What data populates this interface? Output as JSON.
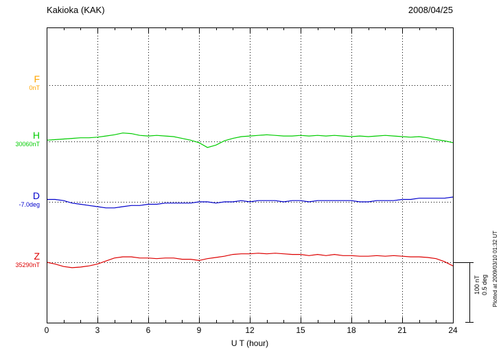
{
  "chart_data": {
    "type": "line",
    "station": "Kakioka (KAK)",
    "date": "2008/04/25",
    "xlabel": "U T (hour)",
    "x_range": [
      0,
      24
    ],
    "x_tick_labels": [
      "0",
      "3",
      "6",
      "9",
      "12",
      "15",
      "18",
      "21",
      "24"
    ],
    "x_step_hours": 0.5,
    "grid": "dotted vertical gridlines every 3 hours; dotted horizontal baseline per trace",
    "scale_bar": {
      "nt_label": "100 nT",
      "deg_label": "0.5 deg",
      "nT_per_bar": 100,
      "deg_per_bar": 0.5
    },
    "series": [
      {
        "name": "F",
        "label": "F",
        "baseline_label": "0nT",
        "baseline_value": 0,
        "unit": "nT",
        "color": "#FFA500",
        "values": []
      },
      {
        "name": "H",
        "label": "H",
        "baseline_label": "30060nT",
        "baseline_value": 30060,
        "unit": "nT",
        "color": "#00CC00",
        "values": [
          30062,
          30063,
          30064,
          30065,
          30066,
          30066,
          30067,
          30069,
          30071,
          30074,
          30073,
          30070,
          30069,
          30070,
          30069,
          30068,
          30065,
          30062,
          30058,
          30050,
          30054,
          30061,
          30065,
          30068,
          30069,
          30070,
          30071,
          30070,
          30069,
          30069,
          30070,
          30069,
          30070,
          30069,
          30070,
          30069,
          30068,
          30069,
          30068,
          30069,
          30070,
          30069,
          30068,
          30067,
          30068,
          30066,
          30063,
          30061,
          30058
        ]
      },
      {
        "name": "D",
        "label": "D",
        "baseline_label": "-7.0deg",
        "baseline_value": -7.0,
        "unit": "deg",
        "color": "#0000CC",
        "values": [
          -6.98,
          -6.98,
          -6.99,
          -7.01,
          -7.02,
          -7.03,
          -7.04,
          -7.05,
          -7.05,
          -7.04,
          -7.03,
          -7.03,
          -7.02,
          -7.02,
          -7.01,
          -7.01,
          -7.01,
          -7.01,
          -7.0,
          -7.0,
          -7.01,
          -7.0,
          -7.0,
          -6.99,
          -7.0,
          -6.99,
          -6.99,
          -6.99,
          -7.0,
          -6.99,
          -6.99,
          -7.0,
          -6.99,
          -6.99,
          -6.99,
          -6.99,
          -6.99,
          -7.0,
          -7.0,
          -6.99,
          -6.99,
          -6.99,
          -6.98,
          -6.98,
          -6.97,
          -6.97,
          -6.97,
          -6.97,
          -6.96
        ]
      },
      {
        "name": "Z",
        "label": "Z",
        "baseline_label": "35290nT",
        "baseline_value": 35290,
        "unit": "nT",
        "color": "#DD0000",
        "values": [
          35290,
          35287,
          35283,
          35281,
          35282,
          35284,
          35287,
          35292,
          35297,
          35299,
          35299,
          35297,
          35297,
          35296,
          35297,
          35297,
          35295,
          35295,
          35293,
          35296,
          35298,
          35300,
          35303,
          35304,
          35304,
          35305,
          35304,
          35305,
          35304,
          35303,
          35303,
          35301,
          35303,
          35301,
          35303,
          35301,
          35301,
          35300,
          35300,
          35301,
          35300,
          35301,
          35300,
          35299,
          35299,
          35298,
          35296,
          35291,
          35284
        ]
      }
    ]
  },
  "footer": {
    "plotted_at": "Plotted at 2009/03/10 01:32 UT"
  }
}
